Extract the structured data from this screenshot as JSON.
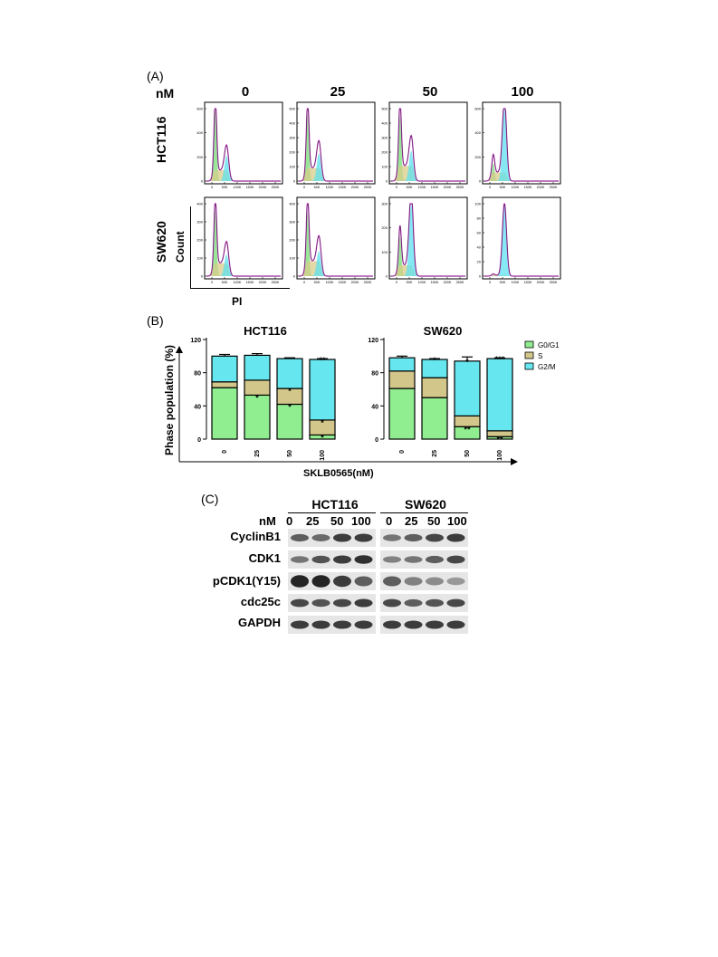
{
  "panel_a": {
    "label": "(A)",
    "unit": "nM",
    "concentrations": [
      "0",
      "25",
      "50",
      "100"
    ],
    "rows": [
      {
        "name": "HCT116",
        "y_ticks": [
          [
            "0",
            "200",
            "400",
            "600"
          ],
          [
            "0",
            "100",
            "200",
            "300",
            "400",
            "500"
          ],
          [
            "0",
            "100",
            "200",
            "300",
            "400",
            "500"
          ],
          [
            "0",
            "200",
            "400",
            "600"
          ]
        ]
      },
      {
        "name": "SW620",
        "y_ticks": [
          [
            "0",
            "100",
            "200",
            "300",
            "400"
          ],
          [
            "0",
            "100",
            "200",
            "300",
            "400"
          ],
          [
            "0",
            "100",
            "200",
            "300"
          ],
          [
            "0",
            "20",
            "40",
            "60",
            "80",
            "100"
          ]
        ]
      }
    ],
    "x_ticks": [
      "0",
      "50K",
      "100K",
      "150K",
      "200K",
      "250K"
    ],
    "count_label": "Count",
    "pi_label": "PI"
  },
  "chart_data": [
    {
      "type": "bar",
      "stacked": true,
      "title": "HCT116",
      "categories": [
        "0",
        "25",
        "50",
        "100"
      ],
      "series": [
        {
          "name": "G0/G1",
          "values": [
            62,
            53,
            42,
            5
          ],
          "errors": [
            2,
            2,
            2,
            1
          ]
        },
        {
          "name": "S",
          "values": [
            7,
            18,
            19,
            18
          ],
          "errors": [
            2,
            2,
            2,
            1
          ]
        },
        {
          "name": "G2/M",
          "values": [
            31,
            30,
            36,
            73
          ],
          "errors": [
            2,
            2,
            1,
            1
          ]
        }
      ],
      "significance": {
        "G0/G1": [
          "",
          "*",
          "*",
          "*"
        ],
        "S": [
          "",
          "",
          "*",
          "*"
        ],
        "G2/M": [
          "",
          "",
          "",
          "**"
        ]
      },
      "ylabel": "Phase population (%)",
      "xlabel": "SKLB0565(nM)",
      "yticks": [
        "0",
        "40",
        "80",
        "120"
      ],
      "ylim": [
        0,
        120
      ],
      "legend": "right",
      "colors": {
        "G0/G1": "#90ee90",
        "S": "#d2c68a",
        "G2/M": "#66e6ee"
      }
    },
    {
      "type": "bar",
      "stacked": true,
      "title": "SW620",
      "categories": [
        "0",
        "25",
        "50",
        "100"
      ],
      "series": [
        {
          "name": "G0/G1",
          "values": [
            61,
            50,
            15,
            3
          ],
          "errors": [
            3,
            3,
            3,
            1
          ]
        },
        {
          "name": "S",
          "values": [
            21,
            24,
            13,
            7
          ],
          "errors": [
            3,
            2,
            2,
            1
          ]
        },
        {
          "name": "G2/M",
          "values": [
            16,
            22,
            66,
            87
          ],
          "errors": [
            2,
            1,
            5,
            1
          ]
        }
      ],
      "significance": {
        "G0/G1": [
          "",
          "",
          "**",
          "**"
        ],
        "S": [
          "",
          "",
          "",
          ""
        ],
        "G2/M": [
          "",
          "*",
          "*",
          "***"
        ]
      },
      "ylabel": "Phase population (%)",
      "xlabel": "SKLB0565(nM)",
      "yticks": [
        "0",
        "40",
        "80",
        "120"
      ],
      "ylim": [
        0,
        120
      ],
      "legend": "right",
      "colors": {
        "G0/G1": "#90ee90",
        "S": "#d2c68a",
        "G2/M": "#66e6ee"
      }
    }
  ],
  "panel_b": {
    "label": "(B)",
    "ylabel": "Phase population (%)",
    "xlabel": "SKLB0565(nM)",
    "legend": [
      "G0/G1",
      "S",
      "G2/M"
    ]
  },
  "panel_c": {
    "label": "(C)",
    "unit": "nM",
    "groups": [
      "HCT116",
      "SW620"
    ],
    "lanes": [
      "0",
      "25",
      "50",
      "100"
    ],
    "proteins": [
      "CyclinB1",
      "CDK1",
      "pCDK1(Y15)",
      "cdc25c",
      "GAPDH"
    ],
    "band_intensity": {
      "HCT116": [
        [
          0.7,
          0.65,
          0.85,
          0.85
        ],
        [
          0.6,
          0.75,
          0.85,
          0.9
        ],
        [
          0.95,
          0.95,
          0.85,
          0.7
        ],
        [
          0.8,
          0.75,
          0.8,
          0.85
        ],
        [
          0.85,
          0.85,
          0.85,
          0.85
        ]
      ],
      "SW620": [
        [
          0.6,
          0.7,
          0.8,
          0.85
        ],
        [
          0.55,
          0.6,
          0.7,
          0.8
        ],
        [
          0.7,
          0.55,
          0.5,
          0.45
        ],
        [
          0.8,
          0.7,
          0.75,
          0.8
        ],
        [
          0.85,
          0.85,
          0.85,
          0.85
        ]
      ]
    }
  }
}
